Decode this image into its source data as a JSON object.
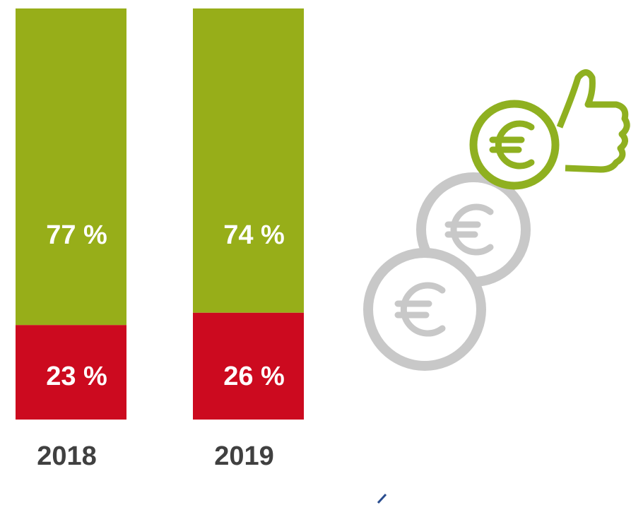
{
  "chart_data": {
    "type": "stacked_bar",
    "categories": [
      "2018",
      "2019"
    ],
    "series": [
      {
        "color": "#cc0a1f",
        "values": [
          23,
          26
        ],
        "value_labels": [
          "23 %",
          "26 %"
        ]
      },
      {
        "color": "#97ae19",
        "values": [
          77,
          74
        ],
        "value_labels": [
          "77 %",
          "74 %"
        ]
      }
    ],
    "ylim": [
      0,
      100
    ]
  }
}
